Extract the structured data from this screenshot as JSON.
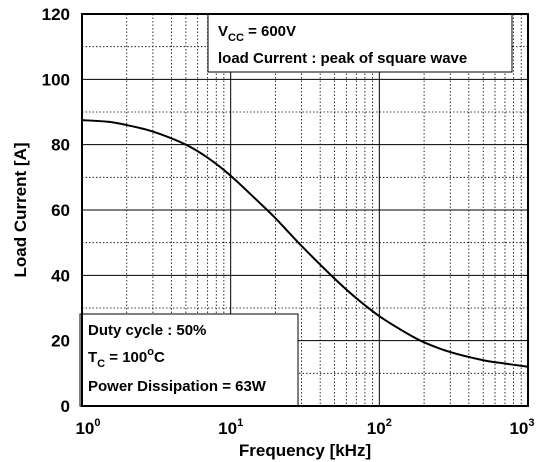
{
  "chart_data": {
    "type": "line",
    "xlabel": "Frequency [kHz]",
    "ylabel": "Load Current [A]",
    "x_scale": "log",
    "xlim": [
      1,
      1000
    ],
    "ylim": [
      0,
      120
    ],
    "grid": true,
    "x_ticks": [
      1,
      10,
      100,
      1000
    ],
    "x_tick_labels": [
      {
        "base": "10",
        "exp": "0"
      },
      {
        "base": "10",
        "exp": "1"
      },
      {
        "base": "10",
        "exp": "2"
      },
      {
        "base": "10",
        "exp": "3"
      }
    ],
    "y_ticks": [
      0,
      20,
      40,
      60,
      80,
      100,
      120
    ],
    "y_tick_labels": [
      "0",
      "20",
      "40",
      "60",
      "80",
      "100",
      "120"
    ],
    "series": [
      {
        "x": [
          1,
          1.5,
          2,
          3,
          5,
          7,
          10,
          15,
          20,
          30,
          50,
          70,
          100,
          150,
          200,
          300,
          500,
          700,
          1000
        ],
        "y": [
          87.5,
          87,
          86,
          84,
          80,
          76,
          70.5,
          63,
          57.5,
          49,
          39,
          33,
          27.5,
          22.5,
          19.5,
          16.5,
          14,
          13,
          12
        ]
      }
    ],
    "annotations": {
      "top_right": {
        "vcc": {
          "main": "V",
          "sub": "CC",
          "rest": " = 600V"
        },
        "line2": "load Current : peak of square wave"
      },
      "bottom_left": {
        "line1": "Duty cycle : 50%",
        "tc": {
          "main": "T",
          "sub": "C",
          "rest": " = 100",
          "sup": "o",
          "rest2": "C"
        },
        "line3": "Power Dissipation = 63W"
      }
    }
  }
}
